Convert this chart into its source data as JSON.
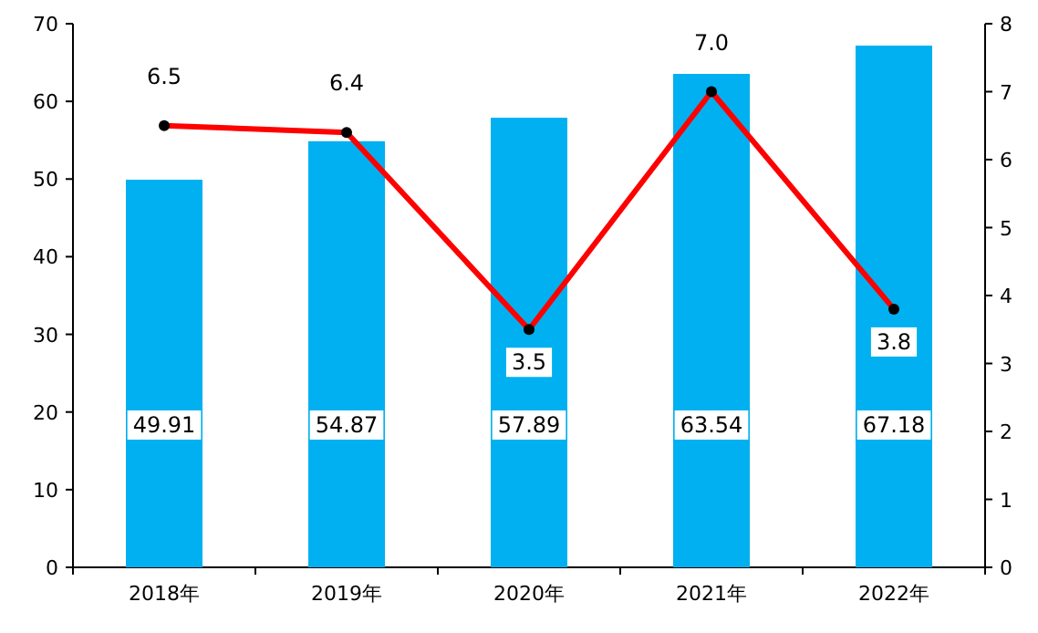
{
  "chart_data": {
    "type": "bar",
    "categories": [
      "2018年",
      "2019年",
      "2020年",
      "2021年",
      "2022年"
    ],
    "ylim": [
      0,
      70
    ],
    "yticks": [
      0,
      10,
      20,
      30,
      40,
      50,
      60,
      70
    ],
    "y2lim": [
      0,
      8
    ],
    "y2ticks": [
      0,
      1,
      2,
      3,
      4,
      5,
      6,
      7,
      8
    ],
    "series": [
      {
        "color": "#00b0f0",
        "values": [
          49.91,
          54.87,
          57.89,
          63.54,
          67.18
        ],
        "value_labels": [
          "49.91",
          "54.87",
          "57.89",
          "63.54",
          "67.18"
        ]
      },
      {
        "type": "line",
        "axis": "y2",
        "color": "#ff0000",
        "marker": "circle",
        "values": [
          6.5,
          6.4,
          3.5,
          7.0,
          3.8
        ],
        "value_labels": [
          "6.5",
          "6.4",
          "3.5",
          "7.0",
          "3.8"
        ]
      }
    ]
  }
}
